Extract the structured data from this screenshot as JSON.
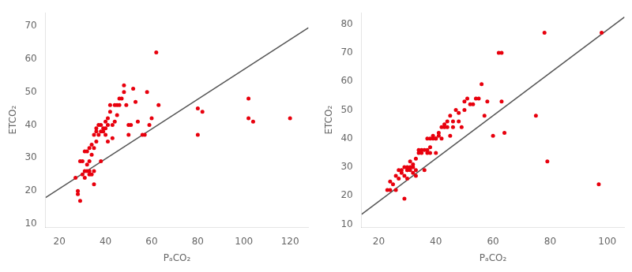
{
  "chart_data": [
    {
      "type": "scatter",
      "xlabel": "PₐCO₂",
      "ylabel": "ETCO₂",
      "xlim": [
        14,
        128
      ],
      "ylim": [
        9,
        74
      ],
      "xticks": [
        20,
        40,
        60,
        80,
        100,
        120
      ],
      "yticks": [
        10,
        20,
        30,
        40,
        50,
        60,
        70
      ],
      "grid": false,
      "series": [
        {
          "type": "scatter",
          "color": "#e8000d",
          "x": [
            27,
            28,
            28,
            29,
            29,
            30,
            30,
            31,
            31,
            31,
            32,
            32,
            32,
            33,
            33,
            33,
            33,
            34,
            34,
            34,
            35,
            35,
            35,
            35,
            36,
            36,
            36,
            37,
            37,
            38,
            38,
            38,
            39,
            39,
            40,
            40,
            40,
            41,
            41,
            41,
            42,
            42,
            43,
            43,
            44,
            44,
            45,
            45,
            46,
            46,
            47,
            48,
            48,
            49,
            50,
            50,
            51,
            52,
            53,
            54,
            56,
            57,
            58,
            59,
            60,
            62,
            63,
            80,
            80,
            82,
            102,
            102,
            104,
            120
          ],
          "values": [
            24,
            20,
            19,
            17,
            29,
            25,
            29,
            32,
            26,
            24,
            26,
            32,
            28,
            33,
            25,
            29,
            26,
            34,
            31,
            25,
            37,
            33,
            26,
            22,
            39,
            38,
            35,
            37,
            40,
            38,
            40,
            29,
            39,
            38,
            41,
            39,
            37,
            42,
            40,
            35,
            46,
            44,
            40,
            36,
            41,
            46,
            43,
            46,
            48,
            46,
            48,
            50,
            52,
            46,
            40,
            37,
            40,
            51,
            47,
            41,
            37,
            37,
            50,
            40,
            42,
            62,
            46,
            45,
            37,
            44,
            48,
            42,
            41,
            42
          ]
        },
        {
          "type": "line",
          "color": "#555555",
          "x": [
            14,
            128
          ],
          "values": [
            18.0,
            69.5
          ]
        }
      ]
    },
    {
      "type": "scatter",
      "xlabel": "PₐCO₂",
      "ylabel": "ETCO₂",
      "xlim": [
        14,
        106
      ],
      "ylim": [
        9,
        84
      ],
      "xticks": [
        20,
        40,
        60,
        80,
        100
      ],
      "yticks": [
        10,
        20,
        30,
        40,
        50,
        60,
        70,
        80
      ],
      "grid": false,
      "series": [
        {
          "type": "scatter",
          "color": "#e8000d",
          "x": [
            23,
            24,
            24,
            25,
            26,
            26,
            27,
            27,
            28,
            28,
            29,
            29,
            29,
            30,
            30,
            30,
            30,
            31,
            31,
            31,
            32,
            32,
            32,
            33,
            33,
            33,
            34,
            34,
            35,
            35,
            36,
            36,
            37,
            37,
            37,
            38,
            38,
            38,
            39,
            39,
            40,
            40,
            40,
            41,
            41,
            42,
            42,
            43,
            43,
            44,
            44,
            45,
            45,
            46,
            46,
            47,
            48,
            48,
            49,
            50,
            50,
            51,
            52,
            53,
            54,
            55,
            56,
            57,
            58,
            60,
            62,
            63,
            63,
            64,
            75,
            78,
            79,
            97,
            98
          ],
          "values": [
            22,
            22,
            25,
            24,
            22,
            27,
            26,
            29,
            29,
            28,
            19,
            27,
            30,
            30,
            29,
            26,
            29,
            32,
            30,
            29,
            28,
            30,
            31,
            33,
            29,
            27,
            36,
            35,
            36,
            35,
            29,
            36,
            36,
            40,
            35,
            40,
            37,
            35,
            41,
            40,
            40,
            35,
            40,
            41,
            42,
            44,
            40,
            44,
            45,
            44,
            46,
            41,
            48,
            44,
            46,
            50,
            46,
            49,
            44,
            50,
            53,
            54,
            52,
            52,
            54,
            54,
            59,
            48,
            53,
            41,
            70,
            70,
            53,
            42,
            48,
            77,
            32,
            24,
            77
          ]
        },
        {
          "type": "line",
          "color": "#555555",
          "x": [
            14,
            106
          ],
          "values": [
            13.5,
            82.5
          ]
        }
      ]
    }
  ]
}
